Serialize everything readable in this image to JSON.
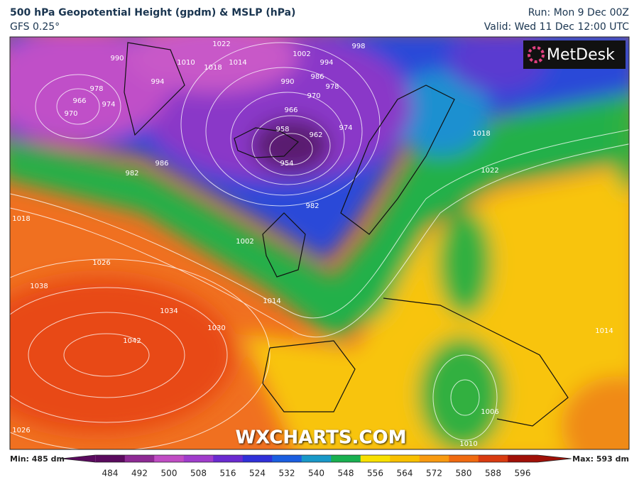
{
  "header": {
    "title": "500 hPa Geopotential Height (gpdm) & MSLP (hPa)",
    "subtitle": "GFS 0.25°",
    "run": "Run: Mon 9 Dec 00Z",
    "valid": "Valid: Wed 11 Dec 12:00 UTC"
  },
  "map": {
    "logo": "MetDesk",
    "watermark": "WXCHARTS.COM",
    "isobar_labels": [
      "990",
      "1022",
      "1010",
      "1018",
      "1014",
      "994",
      "1002",
      "994",
      "998",
      "990",
      "986",
      "978",
      "970",
      "966",
      "958",
      "962",
      "954",
      "974",
      "978",
      "966",
      "974",
      "970",
      "986",
      "982",
      "1018",
      "1022",
      "1018",
      "1026",
      "1038",
      "1034",
      "1030",
      "1042",
      "1014",
      "1002",
      "982",
      "1006",
      "1010",
      "1026",
      "1014"
    ]
  },
  "colorbar": {
    "min_label": "Min: 485 dm",
    "max_label": "Max: 593 dm",
    "ticks": [
      484,
      492,
      500,
      508,
      516,
      524,
      532,
      540,
      548,
      556,
      564,
      572,
      580,
      588,
      596
    ],
    "colors": [
      "#5a0a5e",
      "#8e2a94",
      "#c04cc4",
      "#a03ccc",
      "#6a2ad0",
      "#3030d8",
      "#1a5ee0",
      "#1898c8",
      "#18b050",
      "#f8e000",
      "#f8c000",
      "#f89a10",
      "#f06a10",
      "#d83a10",
      "#a01008"
    ]
  }
}
